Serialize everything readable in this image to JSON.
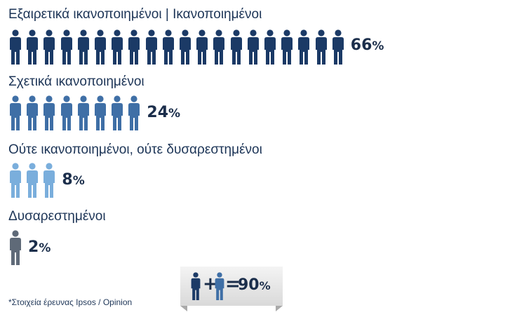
{
  "chart_data": {
    "type": "pictograph",
    "icon": "person-icon",
    "categories": [
      {
        "label": "Εξαιρετικά ικανοποιημένοι | Ικανοποιημένοι",
        "value": 66,
        "icons": 20,
        "color": "#1b3a66"
      },
      {
        "label": "Σχετικά ικανοποιημένοι",
        "value": 24,
        "icons": 8,
        "color": "#3f6fa6"
      },
      {
        "label": "Ούτε ικανοποιημένοι, ούτε δυσαρεστημένοι",
        "value": 8,
        "icons": 3,
        "color": "#7aaedc"
      },
      {
        "label": "Δυσαρεστημένοι",
        "value": 2,
        "icons": 1,
        "color": "#5f6a78"
      }
    ],
    "value_suffix": "%",
    "summary": {
      "plus": "+",
      "equals": "=",
      "value": 90
    },
    "footnote": "*Στοιχεία έρευνας Ipsos / Opinion"
  }
}
